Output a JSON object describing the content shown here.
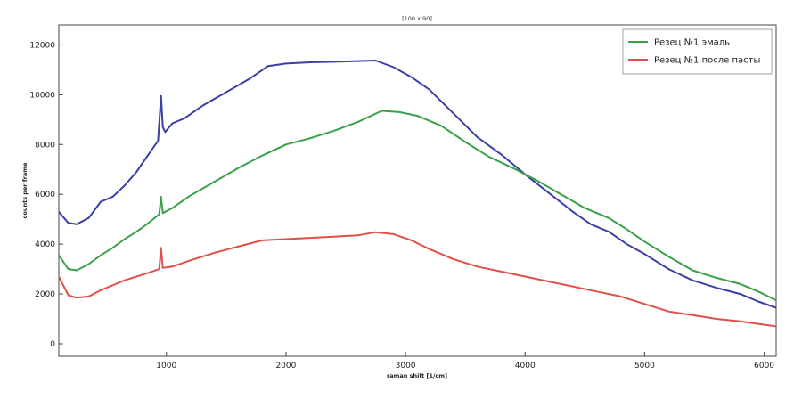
{
  "chart_data": {
    "type": "line",
    "title": "[100 x 90]",
    "xlabel": "raman shift [1/cm]",
    "ylabel": "counts per frame",
    "xlim": [
      100,
      6100
    ],
    "ylim": [
      -500,
      12800
    ],
    "xticks": [
      1000,
      2000,
      3000,
      4000,
      5000,
      6000
    ],
    "yticks": [
      0,
      2000,
      4000,
      6000,
      8000,
      10000,
      12000
    ],
    "grid": false,
    "legend_position": "top-right",
    "series": [
      {
        "name": "",
        "color": "#3b3fa6",
        "points": [
          [
            100,
            5300
          ],
          [
            180,
            4850
          ],
          [
            250,
            4800
          ],
          [
            350,
            5050
          ],
          [
            450,
            5700
          ],
          [
            550,
            5900
          ],
          [
            650,
            6350
          ],
          [
            750,
            6900
          ],
          [
            850,
            7600
          ],
          [
            930,
            8150
          ],
          [
            955,
            9950
          ],
          [
            970,
            8700
          ],
          [
            990,
            8500
          ],
          [
            1050,
            8850
          ],
          [
            1150,
            9050
          ],
          [
            1300,
            9550
          ],
          [
            1500,
            10100
          ],
          [
            1700,
            10650
          ],
          [
            1850,
            11150
          ],
          [
            2000,
            11250
          ],
          [
            2200,
            11300
          ],
          [
            2400,
            11320
          ],
          [
            2600,
            11350
          ],
          [
            2750,
            11370
          ],
          [
            2900,
            11100
          ],
          [
            3050,
            10700
          ],
          [
            3200,
            10200
          ],
          [
            3400,
            9250
          ],
          [
            3600,
            8300
          ],
          [
            3800,
            7600
          ],
          [
            4000,
            6800
          ],
          [
            4200,
            6050
          ],
          [
            4400,
            5300
          ],
          [
            4550,
            4800
          ],
          [
            4700,
            4500
          ],
          [
            4850,
            4000
          ],
          [
            5000,
            3600
          ],
          [
            5200,
            3000
          ],
          [
            5400,
            2550
          ],
          [
            5600,
            2250
          ],
          [
            5800,
            2000
          ],
          [
            5950,
            1700
          ],
          [
            6100,
            1450
          ]
        ]
      },
      {
        "name": "Резец №1 эмаль",
        "color": "#3aa04a",
        "points": [
          [
            100,
            3550
          ],
          [
            180,
            3000
          ],
          [
            250,
            2950
          ],
          [
            350,
            3200
          ],
          [
            450,
            3550
          ],
          [
            550,
            3850
          ],
          [
            650,
            4200
          ],
          [
            750,
            4500
          ],
          [
            850,
            4850
          ],
          [
            940,
            5200
          ],
          [
            955,
            5900
          ],
          [
            970,
            5250
          ],
          [
            1050,
            5450
          ],
          [
            1200,
            5950
          ],
          [
            1400,
            6500
          ],
          [
            1600,
            7050
          ],
          [
            1800,
            7550
          ],
          [
            2000,
            8000
          ],
          [
            2200,
            8250
          ],
          [
            2400,
            8550
          ],
          [
            2600,
            8900
          ],
          [
            2800,
            9350
          ],
          [
            2950,
            9300
          ],
          [
            3100,
            9150
          ],
          [
            3300,
            8750
          ],
          [
            3500,
            8100
          ],
          [
            3700,
            7500
          ],
          [
            3900,
            7050
          ],
          [
            4100,
            6550
          ],
          [
            4300,
            6000
          ],
          [
            4500,
            5450
          ],
          [
            4700,
            5050
          ],
          [
            4850,
            4600
          ],
          [
            5000,
            4100
          ],
          [
            5200,
            3500
          ],
          [
            5400,
            2950
          ],
          [
            5600,
            2650
          ],
          [
            5800,
            2400
          ],
          [
            5950,
            2100
          ],
          [
            6100,
            1750
          ]
        ]
      },
      {
        "name": "Резец №1 после пасты",
        "color": "#e0504a",
        "points": [
          [
            100,
            2700
          ],
          [
            180,
            1950
          ],
          [
            250,
            1850
          ],
          [
            350,
            1900
          ],
          [
            450,
            2150
          ],
          [
            550,
            2350
          ],
          [
            650,
            2550
          ],
          [
            750,
            2700
          ],
          [
            850,
            2850
          ],
          [
            940,
            3000
          ],
          [
            955,
            3850
          ],
          [
            970,
            3050
          ],
          [
            1050,
            3100
          ],
          [
            1200,
            3350
          ],
          [
            1400,
            3650
          ],
          [
            1600,
            3900
          ],
          [
            1800,
            4150
          ],
          [
            2000,
            4200
          ],
          [
            2200,
            4250
          ],
          [
            2400,
            4300
          ],
          [
            2600,
            4350
          ],
          [
            2750,
            4480
          ],
          [
            2900,
            4400
          ],
          [
            3050,
            4150
          ],
          [
            3200,
            3800
          ],
          [
            3400,
            3400
          ],
          [
            3600,
            3100
          ],
          [
            3800,
            2900
          ],
          [
            4000,
            2700
          ],
          [
            4200,
            2500
          ],
          [
            4400,
            2300
          ],
          [
            4600,
            2100
          ],
          [
            4800,
            1900
          ],
          [
            5000,
            1600
          ],
          [
            5200,
            1300
          ],
          [
            5400,
            1150
          ],
          [
            5600,
            1000
          ],
          [
            5800,
            900
          ],
          [
            5950,
            800
          ],
          [
            6100,
            700
          ]
        ]
      }
    ]
  }
}
